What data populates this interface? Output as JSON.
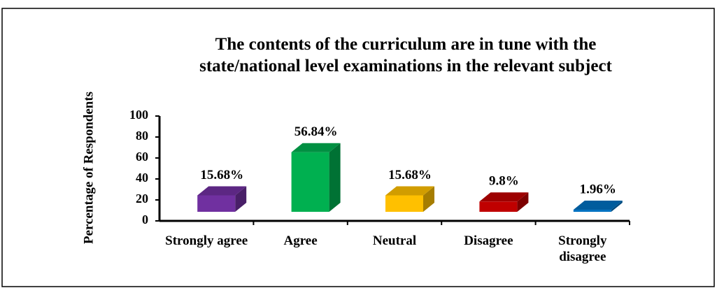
{
  "chart_data": {
    "type": "bar3d",
    "title": [
      "The contents of the curriculum are in tune with the",
      "state/national level examinations in the relevant subject"
    ],
    "y_label": "Percentage of Respondents",
    "categories": [
      "Strongly agree",
      "Agree",
      "Neutral",
      "Disagree",
      "Strongly disagree"
    ],
    "values": [
      15.68,
      56.84,
      15.68,
      9.8,
      1.96
    ],
    "value_labels": [
      "15.68%",
      "56.84%",
      "15.68%",
      "9.8%",
      "1.96%"
    ],
    "colors": [
      "#7030a0",
      "#00b050",
      "#ffc000",
      "#c00000",
      "#0070c0"
    ],
    "ylim": [
      0,
      100
    ],
    "yticks": [
      0,
      20,
      40,
      60,
      80,
      100
    ]
  }
}
